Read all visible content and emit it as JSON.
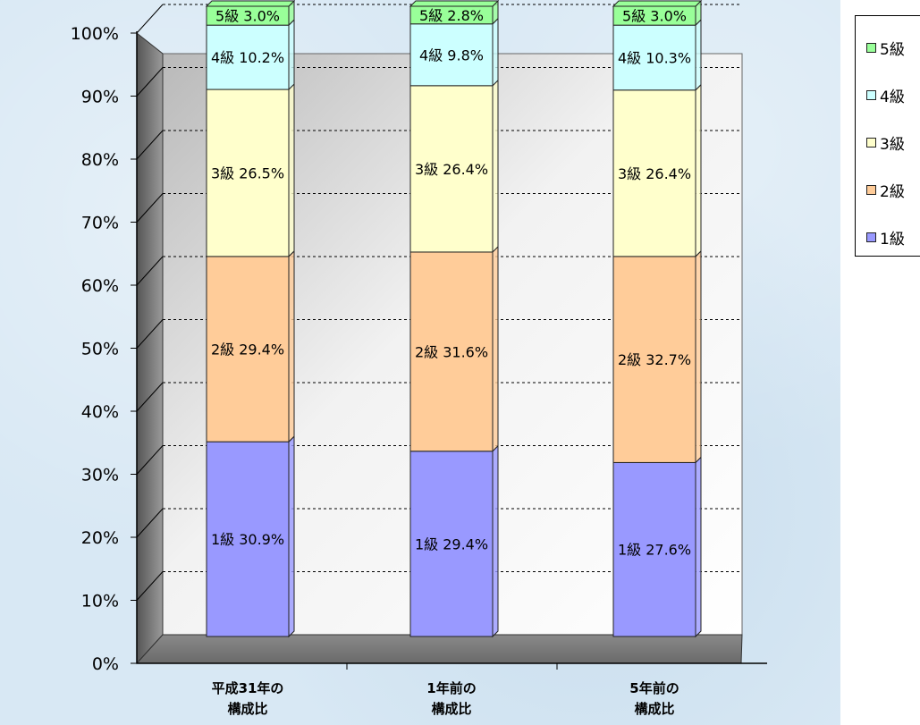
{
  "chart_data": {
    "type": "bar",
    "stacked": true,
    "percent": true,
    "categories": [
      [
        "平成31年の",
        "構成比"
      ],
      [
        "1年前の",
        "構成比"
      ],
      [
        "5年前の",
        "構成比"
      ]
    ],
    "series": [
      {
        "name": "1級",
        "values": [
          30.9,
          29.4,
          27.6
        ],
        "color": "#9999ff"
      },
      {
        "name": "2級",
        "values": [
          29.4,
          31.6,
          32.7
        ],
        "color": "#ffcc99"
      },
      {
        "name": "3級",
        "values": [
          26.5,
          26.4,
          26.4
        ],
        "color": "#ffffcc"
      },
      {
        "name": "4級",
        "values": [
          10.2,
          9.8,
          10.3
        ],
        "color": "#ccffff"
      },
      {
        "name": "5級",
        "values": [
          3.0,
          2.8,
          3.0
        ],
        "color": "#99ff99"
      }
    ],
    "data_labels": [
      [
        "1級 30.9%",
        "1級 29.4%",
        "1級 27.6%"
      ],
      [
        "2級 29.4%",
        "2級 31.6%",
        "2級 32.7%"
      ],
      [
        "3級 26.5%",
        "3級 26.4%",
        "3級 26.4%"
      ],
      [
        "4級 10.2%",
        "4級 9.8%",
        "4級 10.3%"
      ],
      [
        "5級 3.0%",
        "5級 2.8%",
        "5級 3.0%"
      ]
    ],
    "yticks": [
      "0%",
      "10%",
      "20%",
      "30%",
      "40%",
      "50%",
      "60%",
      "70%",
      "80%",
      "90%",
      "100%"
    ],
    "ylim": [
      0,
      100
    ],
    "grid": true,
    "legend_position": "right",
    "legend": [
      "5級",
      "4級",
      "3級",
      "2級",
      "1級"
    ],
    "legend_colors": [
      "#99ff99",
      "#ccffff",
      "#ffffcc",
      "#ffcc99",
      "#9999ff"
    ]
  }
}
